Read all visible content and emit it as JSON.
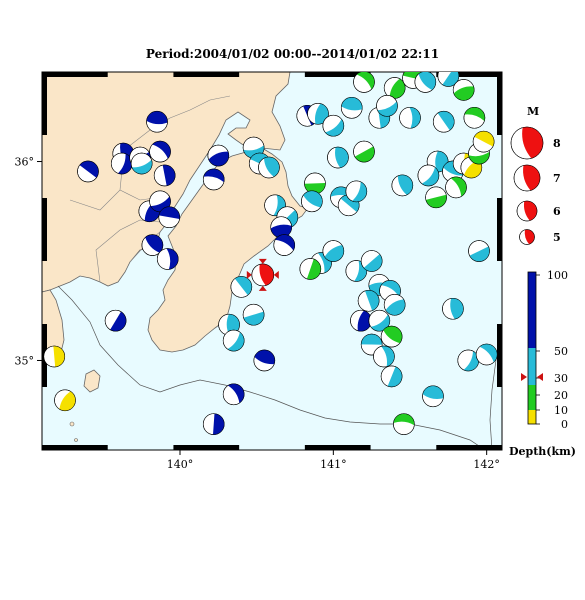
{
  "title": "Period:2004/01/02 00:00--2014/01/02 22:11",
  "axes": {
    "lon_ticks": [
      {
        "value": 140,
        "label": "140°"
      },
      {
        "value": 141,
        "label": "141°"
      },
      {
        "value": 142,
        "label": "142°"
      }
    ],
    "lat_ticks": [
      {
        "value": 36,
        "label": "36°"
      },
      {
        "value": 35,
        "label": "35°"
      }
    ],
    "lon_range": [
      139.1,
      142.1
    ],
    "lat_range": [
      34.55,
      36.45
    ]
  },
  "colors": {
    "sea": "#e8fbff",
    "land": "#fae6c8",
    "shallow": "#f5e000",
    "mid_shallow": "#22cc22",
    "middle": "#27bbd8",
    "deep": "#0011aa",
    "highlight": "#ee1111"
  },
  "magnitude_legend": {
    "title": "M",
    "items": [
      {
        "label": "8",
        "magnitude": 8
      },
      {
        "label": "7",
        "magnitude": 7
      },
      {
        "label": "6",
        "magnitude": 6
      },
      {
        "label": "5",
        "magnitude": 5
      }
    ]
  },
  "depth_legend": {
    "unit_label": "Depth(km)",
    "ticks": [
      {
        "label": "100",
        "depth": 100
      },
      {
        "label": "50",
        "depth": 50
      },
      {
        "label": "30",
        "depth": 30
      },
      {
        "label": "20",
        "depth": 20
      },
      {
        "label": "10",
        "depth": 10
      },
      {
        "label": "0",
        "depth": 0
      }
    ],
    "marker_depth": 30
  },
  "highlight_event": {
    "lon": 140.54,
    "lat": 35.43,
    "depth_class": "highlight"
  },
  "events": [
    {
      "lon": 139.4,
      "lat": 35.95,
      "c": "deep"
    },
    {
      "lon": 139.63,
      "lat": 36.04,
      "c": "deep"
    },
    {
      "lon": 139.62,
      "lat": 35.99,
      "c": "deep"
    },
    {
      "lon": 139.74,
      "lat": 36.02,
      "c": "deep"
    },
    {
      "lon": 139.85,
      "lat": 36.2,
      "c": "deep"
    },
    {
      "lon": 139.87,
      "lat": 36.05,
      "c": "deep"
    },
    {
      "lon": 139.9,
      "lat": 35.93,
      "c": "deep"
    },
    {
      "lon": 139.8,
      "lat": 35.75,
      "c": "deep"
    },
    {
      "lon": 139.87,
      "lat": 35.8,
      "c": "deep"
    },
    {
      "lon": 139.93,
      "lat": 35.72,
      "c": "deep"
    },
    {
      "lon": 139.82,
      "lat": 35.58,
      "c": "deep"
    },
    {
      "lon": 139.92,
      "lat": 35.51,
      "c": "deep"
    },
    {
      "lon": 139.58,
      "lat": 35.2,
      "c": "deep"
    },
    {
      "lon": 140.25,
      "lat": 36.03,
      "c": "deep"
    },
    {
      "lon": 140.22,
      "lat": 35.91,
      "c": "deep"
    },
    {
      "lon": 140.4,
      "lat": 35.37,
      "c": "middle"
    },
    {
      "lon": 140.32,
      "lat": 35.18,
      "c": "middle"
    },
    {
      "lon": 140.35,
      "lat": 35.1,
      "c": "middle"
    },
    {
      "lon": 140.48,
      "lat": 35.23,
      "c": "middle"
    },
    {
      "lon": 140.55,
      "lat": 35.0,
      "c": "deep"
    },
    {
      "lon": 140.35,
      "lat": 34.83,
      "c": "deep"
    },
    {
      "lon": 140.22,
      "lat": 34.68,
      "c": "deep"
    },
    {
      "lon": 140.5,
      "lat": 34.48,
      "c": "middle"
    },
    {
      "lon": 140.48,
      "lat": 36.07,
      "c": "middle"
    },
    {
      "lon": 140.52,
      "lat": 35.99,
      "c": "middle"
    },
    {
      "lon": 140.58,
      "lat": 35.97,
      "c": "middle"
    },
    {
      "lon": 140.62,
      "lat": 35.78,
      "c": "middle"
    },
    {
      "lon": 140.7,
      "lat": 35.72,
      "c": "middle"
    },
    {
      "lon": 140.66,
      "lat": 35.67,
      "c": "deep"
    },
    {
      "lon": 140.68,
      "lat": 35.58,
      "c": "deep"
    },
    {
      "lon": 140.83,
      "lat": 36.23,
      "c": "deep"
    },
    {
      "lon": 140.9,
      "lat": 36.24,
      "c": "middle"
    },
    {
      "lon": 141.0,
      "lat": 36.18,
      "c": "middle"
    },
    {
      "lon": 140.88,
      "lat": 35.89,
      "c": "mid_shallow"
    },
    {
      "lon": 140.86,
      "lat": 35.8,
      "c": "middle"
    },
    {
      "lon": 140.92,
      "lat": 35.49,
      "c": "middle"
    },
    {
      "lon": 140.85,
      "lat": 35.46,
      "c": "mid_shallow"
    },
    {
      "lon": 141.0,
      "lat": 35.55,
      "c": "middle"
    },
    {
      "lon": 141.05,
      "lat": 35.82,
      "c": "middle"
    },
    {
      "lon": 141.1,
      "lat": 35.78,
      "c": "middle"
    },
    {
      "lon": 141.03,
      "lat": 36.02,
      "c": "middle"
    },
    {
      "lon": 141.15,
      "lat": 35.85,
      "c": "middle"
    },
    {
      "lon": 141.2,
      "lat": 36.05,
      "c": "mid_shallow"
    },
    {
      "lon": 141.12,
      "lat": 36.27,
      "c": "middle"
    },
    {
      "lon": 141.2,
      "lat": 36.4,
      "c": "mid_shallow"
    },
    {
      "lon": 141.3,
      "lat": 36.22,
      "c": "middle"
    },
    {
      "lon": 141.4,
      "lat": 36.37,
      "c": "mid_shallow"
    },
    {
      "lon": 141.35,
      "lat": 36.28,
      "c": "middle"
    },
    {
      "lon": 141.52,
      "lat": 36.42,
      "c": "mid_shallow"
    },
    {
      "lon": 141.6,
      "lat": 36.4,
      "c": "middle"
    },
    {
      "lon": 141.5,
      "lat": 36.22,
      "c": "middle"
    },
    {
      "lon": 141.75,
      "lat": 36.43,
      "c": "middle"
    },
    {
      "lon": 141.85,
      "lat": 36.36,
      "c": "mid_shallow"
    },
    {
      "lon": 141.92,
      "lat": 36.22,
      "c": "mid_shallow"
    },
    {
      "lon": 141.72,
      "lat": 36.2,
      "c": "middle"
    },
    {
      "lon": 141.68,
      "lat": 36.0,
      "c": "middle"
    },
    {
      "lon": 141.62,
      "lat": 35.93,
      "c": "middle"
    },
    {
      "lon": 141.67,
      "lat": 35.82,
      "c": "mid_shallow"
    },
    {
      "lon": 141.78,
      "lat": 35.95,
      "c": "middle"
    },
    {
      "lon": 141.8,
      "lat": 35.87,
      "c": "mid_shallow"
    },
    {
      "lon": 141.85,
      "lat": 35.99,
      "c": "shallow"
    },
    {
      "lon": 141.9,
      "lat": 35.97,
      "c": "shallow"
    },
    {
      "lon": 141.95,
      "lat": 36.04,
      "c": "mid_shallow"
    },
    {
      "lon": 141.98,
      "lat": 36.1,
      "c": "shallow"
    },
    {
      "lon": 141.45,
      "lat": 35.88,
      "c": "middle"
    },
    {
      "lon": 141.15,
      "lat": 35.45,
      "c": "middle"
    },
    {
      "lon": 141.25,
      "lat": 35.5,
      "c": "middle"
    },
    {
      "lon": 141.3,
      "lat": 35.38,
      "c": "middle"
    },
    {
      "lon": 141.37,
      "lat": 35.35,
      "c": "middle"
    },
    {
      "lon": 141.23,
      "lat": 35.3,
      "c": "middle"
    },
    {
      "lon": 141.18,
      "lat": 35.2,
      "c": "deep"
    },
    {
      "lon": 141.3,
      "lat": 35.2,
      "c": "middle"
    },
    {
      "lon": 141.25,
      "lat": 35.08,
      "c": "middle"
    },
    {
      "lon": 141.38,
      "lat": 35.12,
      "c": "mid_shallow"
    },
    {
      "lon": 141.33,
      "lat": 35.02,
      "c": "middle"
    },
    {
      "lon": 141.38,
      "lat": 34.92,
      "c": "middle"
    },
    {
      "lon": 141.4,
      "lat": 35.28,
      "c": "middle"
    },
    {
      "lon": 141.46,
      "lat": 34.68,
      "c": "mid_shallow"
    },
    {
      "lon": 141.3,
      "lat": 34.49,
      "c": "middle"
    },
    {
      "lon": 141.78,
      "lat": 35.26,
      "c": "middle"
    },
    {
      "lon": 141.88,
      "lat": 35.0,
      "c": "middle"
    },
    {
      "lon": 141.95,
      "lat": 35.55,
      "c": "middle"
    },
    {
      "lon": 141.65,
      "lat": 34.82,
      "c": "middle"
    },
    {
      "lon": 142.0,
      "lat": 35.03,
      "c": "middle"
    },
    {
      "lon": 139.18,
      "lat": 35.02,
      "c": "shallow"
    },
    {
      "lon": 139.25,
      "lat": 34.8,
      "c": "shallow"
    },
    {
      "lon": 139.75,
      "lat": 35.99,
      "c": "middle"
    }
  ]
}
